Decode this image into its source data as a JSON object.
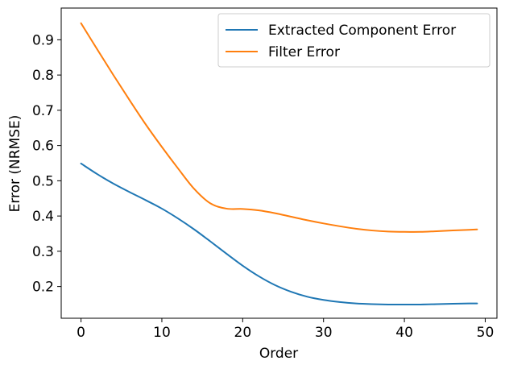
{
  "chart_data": {
    "type": "line",
    "xlabel": "Order",
    "ylabel": "Error (NRMSE)",
    "xlim": [
      -2.45,
      51.45
    ],
    "ylim": [
      0.11,
      0.99
    ],
    "x_ticks": [
      0,
      10,
      20,
      30,
      40,
      50
    ],
    "y_ticks": [
      0.2,
      0.3,
      0.4,
      0.5,
      0.6,
      0.7,
      0.8,
      0.9
    ],
    "x_tick_labels": [
      "0",
      "10",
      "20",
      "30",
      "40",
      "50"
    ],
    "y_tick_labels": [
      "0.2",
      "0.3",
      "0.4",
      "0.5",
      "0.6",
      "0.7",
      "0.8",
      "0.9"
    ],
    "grid": false,
    "legend_position": "top-right",
    "series": [
      {
        "name": "Extracted Component Error",
        "color": "#1f77b4",
        "x": [
          0,
          2,
          4,
          6,
          8,
          10,
          12,
          14,
          16,
          18,
          20,
          22,
          24,
          26,
          28,
          30,
          32,
          34,
          36,
          38,
          40,
          42,
          44,
          46,
          48,
          49
        ],
        "values": [
          0.549,
          0.519,
          0.492,
          0.468,
          0.445,
          0.421,
          0.393,
          0.362,
          0.328,
          0.293,
          0.259,
          0.229,
          0.204,
          0.185,
          0.171,
          0.162,
          0.156,
          0.152,
          0.15,
          0.149,
          0.149,
          0.149,
          0.15,
          0.151,
          0.152,
          0.152
        ]
      },
      {
        "name": "Filter Error",
        "color": "#ff7f0e",
        "x": [
          0,
          2,
          4,
          6,
          8,
          10,
          12,
          14,
          16,
          18,
          20,
          22,
          24,
          26,
          28,
          30,
          32,
          34,
          36,
          38,
          40,
          42,
          44,
          46,
          48,
          49
        ],
        "values": [
          0.947,
          0.873,
          0.8,
          0.729,
          0.66,
          0.596,
          0.535,
          0.477,
          0.436,
          0.421,
          0.42,
          0.416,
          0.408,
          0.398,
          0.388,
          0.379,
          0.371,
          0.364,
          0.359,
          0.356,
          0.355,
          0.355,
          0.357,
          0.359,
          0.361,
          0.362
        ]
      }
    ]
  }
}
